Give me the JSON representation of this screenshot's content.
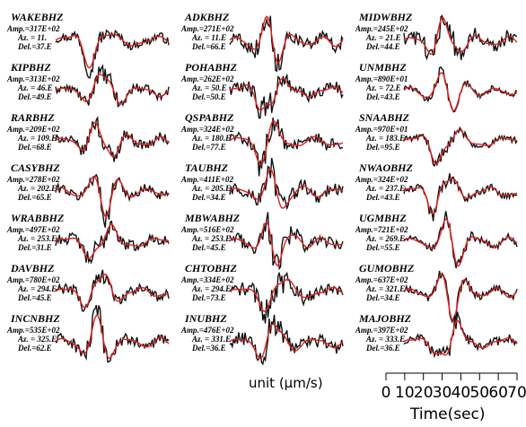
{
  "chart_data": {
    "type": "line",
    "series": [
      {
        "name": "observed",
        "color": "#111111"
      },
      {
        "name": "synthetic",
        "color": "#e02020"
      }
    ],
    "stations": [
      {
        "code": "WAKEBHZ",
        "amp": "Amp.=317E+02",
        "az": "Az. = 11.",
        "del": "Del.=37.E"
      },
      {
        "code": "KIPBHZ",
        "amp": "Amp.=313E+02",
        "az": "Az. = 46.E",
        "del": "Del.=49.E"
      },
      {
        "code": "RARBHZ",
        "amp": "Amp.=209E+02",
        "az": "Az. = 109.E",
        "del": "Del.=68.E"
      },
      {
        "code": "CASYBHZ",
        "amp": "Amp.=278E+02",
        "az": "Az. = 202.E",
        "del": "Del.=65.E"
      },
      {
        "code": "WRABBHZ",
        "amp": "Amp.=497E+02",
        "az": "Az. = 253.E",
        "del": "Del.=31.E"
      },
      {
        "code": "DAVBHZ",
        "amp": "Amp.=780E+02",
        "az": "Az. = 294.E",
        "del": "Del.=45.E"
      },
      {
        "code": "INCNBHZ",
        "amp": "Amp.=535E+02",
        "az": "Az. = 325.E",
        "del": "Del.=62.E"
      },
      {
        "code": "ADKBHZ",
        "amp": "Amp.=271E+02",
        "az": "Az. = 11.E",
        "del": "Del.=66.E"
      },
      {
        "code": "POHABHZ",
        "amp": "Amp.=262E+02",
        "az": "Az. = 50.E",
        "del": "Del.=50.E"
      },
      {
        "code": "QSPABHZ",
        "amp": "Amp.=324E+02",
        "az": "Az. = 180.E",
        "del": "Del.=77.E"
      },
      {
        "code": "TAUBHZ",
        "amp": "Amp.=411E+02",
        "az": "Az. = 205.E",
        "del": "Del.=34.E"
      },
      {
        "code": "MBWABHZ",
        "amp": "Amp.=516E+02",
        "az": "Az. = 253.E",
        "del": "Del.=45.E"
      },
      {
        "code": "CHTOBHZ",
        "amp": "Amp.=334E+02",
        "az": "Az. = 294.E",
        "del": "Del.=73.E"
      },
      {
        "code": "INUBHZ",
        "amp": "Amp.=476E+02",
        "az": "Az. = 331.E",
        "del": "Del.=36.E"
      },
      {
        "code": "MIDWBHZ",
        "amp": "Amp.=245E+02",
        "az": "Az. = 21.E",
        "del": "Del.=44.E"
      },
      {
        "code": "UNMBHZ",
        "amp": "Amp.=890E+01",
        "az": "Az. = 72.E",
        "del": "Del.=43.E"
      },
      {
        "code": "SNAABHZ",
        "amp": "Amp.=970E+01",
        "az": "Az. = 183.E",
        "del": "Del.=95.E"
      },
      {
        "code": "NWAOBHZ",
        "amp": "Amp.=324E+02",
        "az": "Az. = 237.E",
        "del": "Del.=43.E"
      },
      {
        "code": "UGMBHZ",
        "amp": "Amp.=721E+02",
        "az": "Az. = 269.E",
        "del": "Del.=55.E"
      },
      {
        "code": "GUMOBHZ",
        "amp": "Amp.=637E+02",
        "az": "Az. = 321.E",
        "del": "Del.=34.E"
      },
      {
        "code": "MAJOBHZ",
        "amp": "Amp.=397E+02",
        "az": "Az. = 333.E",
        "del": "Del.=36.E"
      }
    ],
    "unit_label": "unit (µm/s)",
    "time_axis": {
      "xlabel": "Time(sec)",
      "xlim": [
        0,
        70
      ],
      "ticks": [
        "0",
        "10",
        "20",
        "30",
        "40",
        "50",
        "60",
        "70"
      ]
    }
  }
}
